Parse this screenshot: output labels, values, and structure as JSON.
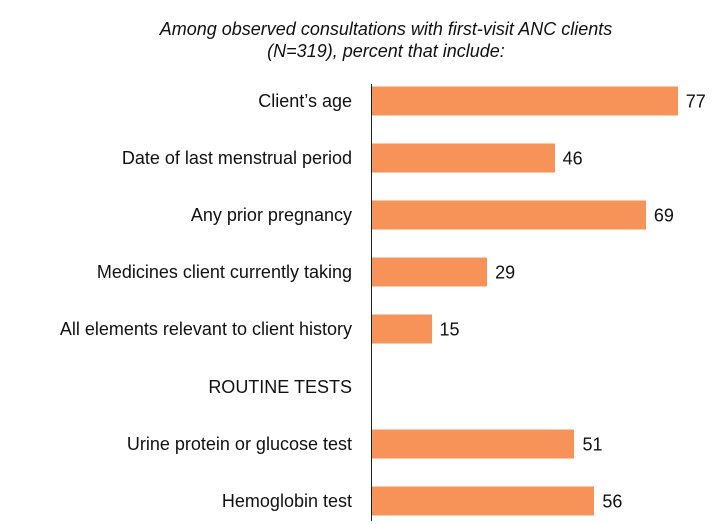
{
  "chart_data": {
    "type": "bar",
    "orientation": "horizontal",
    "title": [
      "Among observed consultations with first-visit ANC clients",
      "(N=319), percent that include:"
    ],
    "categories": [
      "Client’s age",
      "Date of last menstrual period",
      "Any prior pregnancy",
      "Medicines client currently taking",
      "All elements relevant to client history",
      "ROUTINE TESTS",
      "Urine protein or glucose test",
      "Hemoglobin test"
    ],
    "values": [
      77,
      46,
      69,
      29,
      15,
      null,
      51,
      56
    ],
    "color": "#f79258",
    "xlim": [
      0,
      100
    ]
  }
}
